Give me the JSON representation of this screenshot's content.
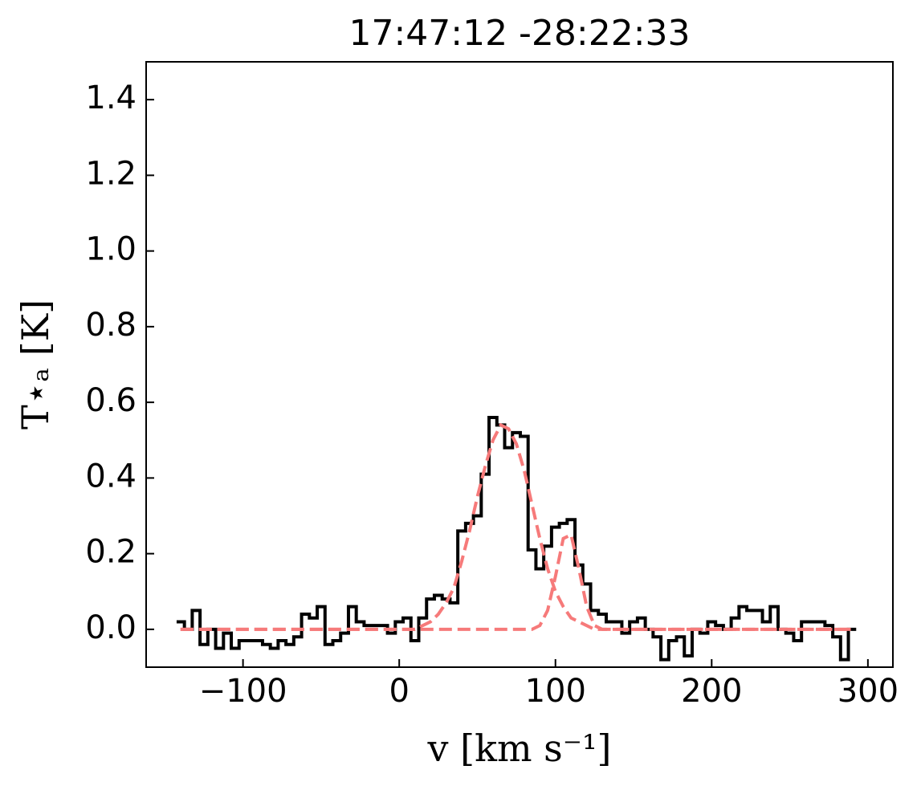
{
  "chart_data": {
    "type": "step",
    "title": "17:47:12 -28:22:33",
    "xlabel": "v [km s⁻¹]",
    "ylabel": "T⋆ₐ [K]",
    "xlim": [
      -162,
      316
    ],
    "ylim": [
      -0.1,
      1.5
    ],
    "xticks": [
      {
        "value": -100,
        "label": "−100"
      },
      0,
      100,
      200,
      300
    ],
    "yticks": [
      {
        "value": 0,
        "label": "0.0"
      },
      0.2,
      0.4,
      0.6,
      0.8,
      {
        "value": 1,
        "label": "1.0"
      },
      1.2,
      1.4
    ],
    "x": [
      -140,
      -135,
      -130,
      -125,
      -120,
      -115,
      -110,
      -105,
      -100,
      -95,
      -90,
      -85,
      -80,
      -75,
      -70,
      -65,
      -60,
      -55,
      -50,
      -45,
      -40,
      -35,
      -30,
      -25,
      -20,
      -15,
      -10,
      -5,
      0,
      5,
      10,
      15,
      20,
      25,
      30,
      35,
      40,
      45,
      50,
      55,
      60,
      65,
      70,
      75,
      80,
      85,
      90,
      95,
      100,
      105,
      110,
      115,
      120,
      125,
      130,
      135,
      140,
      145,
      150,
      155,
      160,
      165,
      170,
      175,
      180,
      185,
      190,
      195,
      200,
      205,
      210,
      215,
      220,
      225,
      230,
      235,
      240,
      245,
      250,
      255,
      260,
      265,
      270,
      275,
      280,
      285,
      290
    ],
    "series": [
      {
        "color": "#000000",
        "style": "step",
        "values": [
          0.02,
          0.0,
          0.05,
          -0.04,
          0.0,
          -0.05,
          -0.01,
          -0.05,
          -0.03,
          -0.03,
          -0.03,
          -0.04,
          -0.05,
          -0.03,
          -0.04,
          -0.02,
          0.04,
          0.03,
          0.06,
          -0.04,
          -0.03,
          -0.01,
          0.06,
          0.02,
          0.01,
          0.01,
          0.01,
          -0.01,
          0.02,
          0.03,
          -0.03,
          0.03,
          0.08,
          0.09,
          0.08,
          0.07,
          0.26,
          0.28,
          0.3,
          0.41,
          0.56,
          0.54,
          0.48,
          0.52,
          0.51,
          0.21,
          0.16,
          0.22,
          0.27,
          0.28,
          0.29,
          0.17,
          0.12,
          0.05,
          0.04,
          0.02,
          0.02,
          -0.01,
          0.02,
          0.03,
          0.0,
          -0.02,
          -0.08,
          -0.03,
          -0.02,
          -0.07,
          0.0,
          -0.01,
          0.02,
          0.01,
          0.0,
          0.03,
          0.06,
          0.05,
          0.05,
          0.02,
          0.06,
          0.0,
          -0.01,
          -0.03,
          0.02,
          0.02,
          0.02,
          0.01,
          -0.02,
          -0.08,
          0.0
        ]
      },
      {
        "color": "#f67a7a",
        "style": "dashed",
        "values": [
          0,
          0,
          0,
          0,
          0,
          0,
          0,
          0,
          0,
          0,
          0,
          0,
          0,
          0,
          0,
          0,
          0,
          0,
          0,
          0,
          0,
          0,
          0,
          0,
          0,
          0,
          0,
          0,
          0,
          0,
          0,
          0.01,
          0.02,
          0.04,
          0.07,
          0.11,
          0.18,
          0.26,
          0.35,
          0.43,
          0.5,
          0.54,
          0.53,
          0.49,
          0.42,
          0.33,
          0.24,
          0.16,
          0.1,
          0.06,
          0.03,
          0.02,
          0.01,
          0,
          0,
          0,
          0,
          0,
          0,
          0,
          0,
          0,
          0,
          0,
          0,
          0,
          0,
          0,
          0,
          0,
          0,
          0,
          0,
          0,
          0,
          0,
          0,
          0,
          0,
          0,
          0,
          0,
          0,
          0,
          0,
          0,
          0
        ]
      },
      {
        "color": "#f67a7a",
        "style": "dashed",
        "values": [
          0,
          0,
          0,
          0,
          0,
          0,
          0,
          0,
          0,
          0,
          0,
          0,
          0,
          0,
          0,
          0,
          0,
          0,
          0,
          0,
          0,
          0,
          0,
          0,
          0,
          0,
          0,
          0,
          0,
          0,
          0,
          0,
          0,
          0,
          0,
          0,
          0,
          0,
          0,
          0,
          0,
          0,
          0,
          0,
          0,
          0,
          0.01,
          0.05,
          0.14,
          0.24,
          0.25,
          0.16,
          0.06,
          0.01,
          0,
          0,
          0,
          0,
          0,
          0,
          0,
          0,
          0,
          0,
          0,
          0,
          0,
          0,
          0,
          0,
          0,
          0,
          0,
          0,
          0,
          0,
          0,
          0,
          0,
          0,
          0,
          0,
          0,
          0,
          0,
          0,
          0
        ]
      }
    ]
  }
}
